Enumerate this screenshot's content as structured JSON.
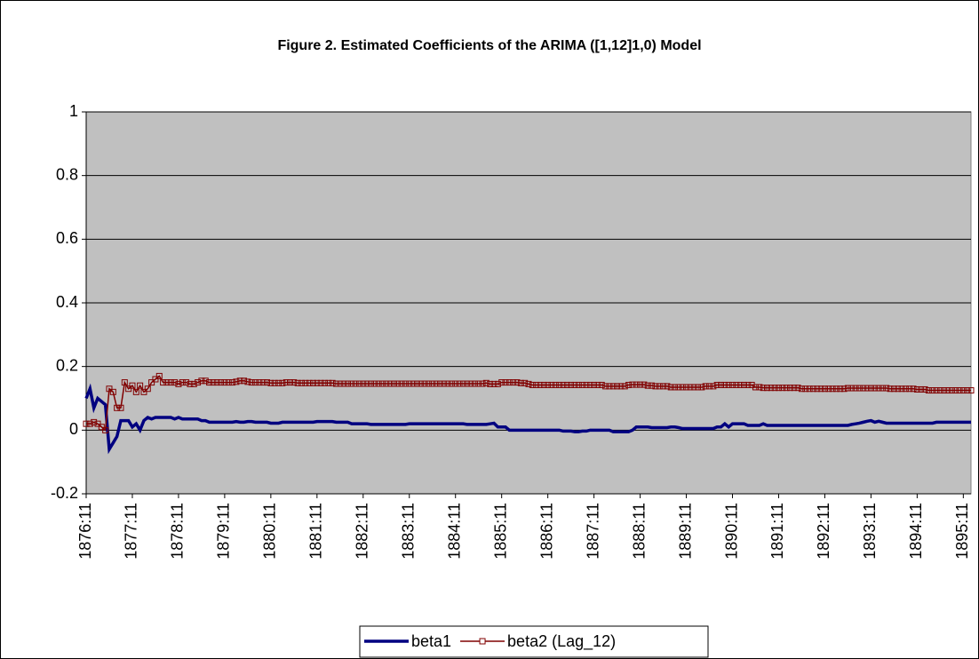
{
  "chart_data": {
    "type": "line",
    "title": "Figure 2. Estimated Coefficients of the ARIMA ([1,12]1,0) Model",
    "categories": [
      "1876:11",
      null,
      null,
      null,
      null,
      null,
      null,
      null,
      null,
      null,
      null,
      null,
      "1877:11",
      null,
      null,
      null,
      null,
      null,
      null,
      null,
      null,
      null,
      null,
      null,
      "1878:11",
      null,
      null,
      null,
      null,
      null,
      null,
      null,
      null,
      null,
      null,
      null,
      "1879:11",
      null,
      null,
      null,
      null,
      null,
      null,
      null,
      null,
      null,
      null,
      null,
      "1880:11",
      null,
      null,
      null,
      null,
      null,
      null,
      null,
      null,
      null,
      null,
      null,
      "1881:11",
      null,
      null,
      null,
      null,
      null,
      null,
      null,
      null,
      null,
      null,
      null,
      "1882:11",
      null,
      null,
      null,
      null,
      null,
      null,
      null,
      null,
      null,
      null,
      null,
      "1883:11",
      null,
      null,
      null,
      null,
      null,
      null,
      null,
      null,
      null,
      null,
      null,
      "1884:11",
      null,
      null,
      null,
      null,
      null,
      null,
      null,
      null,
      null,
      null,
      null,
      "1885:11",
      null,
      null,
      null,
      null,
      null,
      null,
      null,
      null,
      null,
      null,
      null,
      "1886:11",
      null,
      null,
      null,
      null,
      null,
      null,
      null,
      null,
      null,
      null,
      null,
      "1887:11",
      null,
      null,
      null,
      null,
      null,
      null,
      null,
      null,
      null,
      null,
      null,
      "1888:11",
      null,
      null,
      null,
      null,
      null,
      null,
      null,
      null,
      null,
      null,
      null,
      "1889:11",
      null,
      null,
      null,
      null,
      null,
      null,
      null,
      null,
      null,
      null,
      null,
      "1890:11",
      null,
      null,
      null,
      null,
      null,
      null,
      null,
      null,
      null,
      null,
      null,
      "1891:11",
      null,
      null,
      null,
      null,
      null,
      null,
      null,
      null,
      null,
      null,
      null,
      "1892:11",
      null,
      null,
      null,
      null,
      null,
      null,
      null,
      null,
      null,
      null,
      null,
      "1893:11",
      null,
      null,
      null,
      null,
      null,
      null,
      null,
      null,
      null,
      null,
      null,
      "1894:11",
      null,
      null,
      null,
      null,
      null,
      null,
      null,
      null,
      null,
      null,
      null,
      "1895:11",
      null,
      null
    ],
    "series": [
      {
        "name": "beta1",
        "color": "#000080",
        "marker": false,
        "values": [
          0.1,
          0.13,
          0.07,
          0.1,
          0.09,
          0.08,
          -0.06,
          -0.04,
          -0.02,
          0.03,
          0.03,
          0.03,
          0.01,
          0.02,
          0.0,
          0.03,
          0.04,
          0.035,
          0.04,
          0.04,
          0.04,
          0.04,
          0.04,
          0.035,
          0.04,
          0.035,
          0.035,
          0.035,
          0.035,
          0.035,
          0.03,
          0.03,
          0.025,
          0.025,
          0.025,
          0.025,
          0.025,
          0.025,
          0.025,
          0.027,
          0.025,
          0.025,
          0.027,
          0.027,
          0.025,
          0.025,
          0.025,
          0.025,
          0.022,
          0.022,
          0.022,
          0.025,
          0.025,
          0.025,
          0.025,
          0.025,
          0.025,
          0.025,
          0.025,
          0.025,
          0.027,
          0.027,
          0.027,
          0.027,
          0.027,
          0.025,
          0.025,
          0.025,
          0.025,
          0.02,
          0.02,
          0.02,
          0.02,
          0.02,
          0.018,
          0.018,
          0.018,
          0.018,
          0.018,
          0.018,
          0.018,
          0.018,
          0.018,
          0.018,
          0.02,
          0.02,
          0.02,
          0.02,
          0.02,
          0.02,
          0.02,
          0.02,
          0.02,
          0.02,
          0.02,
          0.02,
          0.02,
          0.02,
          0.02,
          0.018,
          0.018,
          0.018,
          0.018,
          0.018,
          0.018,
          0.02,
          0.022,
          0.01,
          0.01,
          0.01,
          0.0,
          0.0,
          0.0,
          0.0,
          0.0,
          0.0,
          0.0,
          0.0,
          0.0,
          0.0,
          0.0,
          0.0,
          0.0,
          0.0,
          -0.003,
          -0.003,
          -0.003,
          -0.005,
          -0.005,
          -0.003,
          -0.003,
          0.0,
          0.0,
          0.0,
          0.0,
          0.0,
          0.0,
          -0.005,
          -0.005,
          -0.005,
          -0.005,
          -0.005,
          0.0,
          0.01,
          0.01,
          0.01,
          0.01,
          0.008,
          0.008,
          0.008,
          0.008,
          0.008,
          0.01,
          0.01,
          0.008,
          0.005,
          0.005,
          0.005,
          0.005,
          0.005,
          0.005,
          0.005,
          0.005,
          0.005,
          0.01,
          0.01,
          0.02,
          0.01,
          0.02,
          0.02,
          0.02,
          0.02,
          0.015,
          0.015,
          0.015,
          0.015,
          0.02,
          0.015,
          0.015,
          0.015,
          0.015,
          0.015,
          0.015,
          0.015,
          0.015,
          0.015,
          0.015,
          0.015,
          0.015,
          0.015,
          0.015,
          0.015,
          0.015,
          0.015,
          0.015,
          0.015,
          0.015,
          0.015,
          0.015,
          0.018,
          0.02,
          0.022,
          0.025,
          0.028,
          0.03,
          0.025,
          0.028,
          0.025,
          0.022,
          0.022,
          0.022,
          0.022,
          0.022,
          0.022,
          0.022,
          0.022,
          0.022,
          0.022,
          0.022,
          0.022,
          0.022,
          0.025,
          0.025,
          0.025,
          0.025,
          0.025,
          0.025,
          0.025,
          0.025,
          0.025,
          0.025
        ]
      },
      {
        "name": "beta2 (Lag_12)",
        "color": "#800000",
        "marker": true,
        "values": [
          0.02,
          0.02,
          0.025,
          0.02,
          0.01,
          0.0,
          0.13,
          0.12,
          0.07,
          0.07,
          0.15,
          0.13,
          0.14,
          0.12,
          0.14,
          0.12,
          0.13,
          0.15,
          0.16,
          0.17,
          0.15,
          0.15,
          0.15,
          0.15,
          0.145,
          0.15,
          0.15,
          0.145,
          0.145,
          0.15,
          0.155,
          0.155,
          0.15,
          0.15,
          0.15,
          0.15,
          0.15,
          0.15,
          0.15,
          0.152,
          0.155,
          0.155,
          0.152,
          0.15,
          0.15,
          0.15,
          0.15,
          0.15,
          0.148,
          0.148,
          0.148,
          0.148,
          0.15,
          0.15,
          0.15,
          0.148,
          0.148,
          0.148,
          0.148,
          0.148,
          0.148,
          0.148,
          0.148,
          0.148,
          0.148,
          0.146,
          0.146,
          0.146,
          0.146,
          0.146,
          0.146,
          0.146,
          0.146,
          0.146,
          0.146,
          0.146,
          0.146,
          0.146,
          0.146,
          0.146,
          0.146,
          0.146,
          0.146,
          0.146,
          0.146,
          0.146,
          0.146,
          0.146,
          0.146,
          0.146,
          0.146,
          0.146,
          0.146,
          0.146,
          0.146,
          0.146,
          0.146,
          0.146,
          0.146,
          0.146,
          0.146,
          0.146,
          0.146,
          0.146,
          0.148,
          0.145,
          0.145,
          0.145,
          0.15,
          0.15,
          0.15,
          0.15,
          0.15,
          0.148,
          0.148,
          0.145,
          0.142,
          0.142,
          0.142,
          0.142,
          0.142,
          0.142,
          0.142,
          0.142,
          0.142,
          0.142,
          0.142,
          0.142,
          0.142,
          0.142,
          0.142,
          0.142,
          0.142,
          0.142,
          0.142,
          0.138,
          0.138,
          0.138,
          0.138,
          0.138,
          0.138,
          0.142,
          0.143,
          0.143,
          0.143,
          0.143,
          0.14,
          0.14,
          0.138,
          0.138,
          0.138,
          0.138,
          0.135,
          0.135,
          0.135,
          0.135,
          0.135,
          0.135,
          0.135,
          0.135,
          0.135,
          0.138,
          0.138,
          0.138,
          0.142,
          0.142,
          0.142,
          0.142,
          0.142,
          0.142,
          0.142,
          0.142,
          0.142,
          0.142,
          0.135,
          0.135,
          0.133,
          0.133,
          0.133,
          0.133,
          0.133,
          0.133,
          0.133,
          0.133,
          0.133,
          0.133,
          0.13,
          0.13,
          0.13,
          0.13,
          0.13,
          0.13,
          0.13,
          0.13,
          0.13,
          0.13,
          0.13,
          0.13,
          0.132,
          0.132,
          0.132,
          0.132,
          0.132,
          0.132,
          0.132,
          0.132,
          0.132,
          0.132,
          0.132,
          0.13,
          0.13,
          0.13,
          0.13,
          0.13,
          0.13,
          0.13,
          0.128,
          0.128,
          0.128,
          0.125,
          0.125,
          0.125,
          0.125,
          0.125,
          0.125,
          0.125,
          0.125,
          0.125,
          0.125,
          0.125,
          0.125
        ]
      }
    ],
    "ylim": [
      -0.2,
      1
    ],
    "yticks": [
      -0.2,
      0,
      0.2,
      0.4,
      0.6,
      0.8,
      1
    ],
    "grid": true,
    "plot_background": "#c0c0c0",
    "legend": "bottom"
  }
}
